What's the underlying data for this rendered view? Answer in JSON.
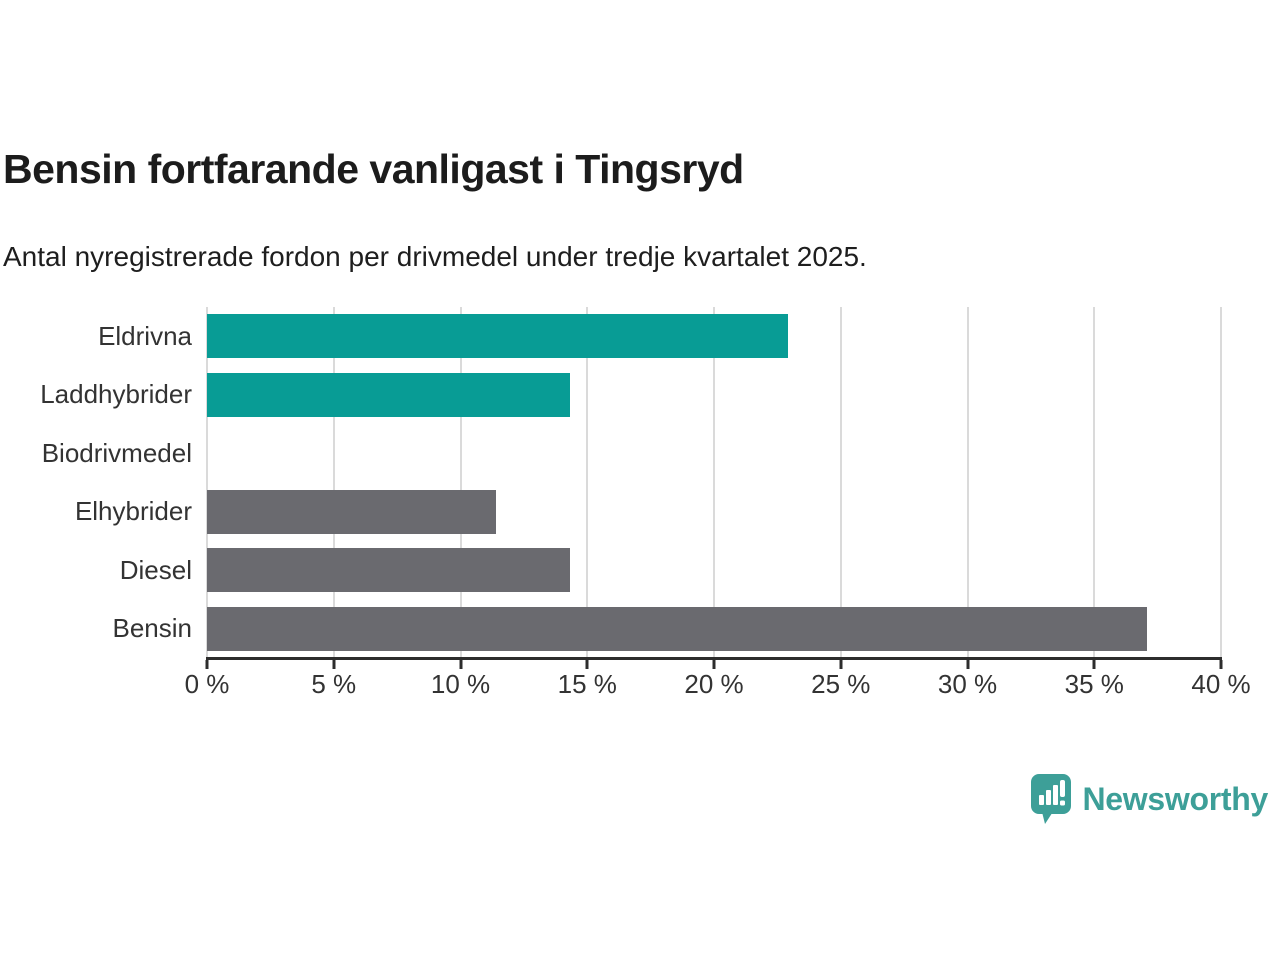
{
  "title": "Bensin fortfarande vanligast i Tingsryd",
  "subtitle": "Antal nyregistrerade fordon per drivmedel under tredje kvartalet 2025.",
  "chart_data": {
    "type": "bar",
    "orientation": "horizontal",
    "categories": [
      "Eldrivna",
      "Laddhybrider",
      "Biodrivmedel",
      "Elhybrider",
      "Diesel",
      "Bensin"
    ],
    "values": [
      22.9,
      14.3,
      0,
      11.4,
      14.3,
      37.1
    ],
    "unit": "%",
    "xlim": [
      0,
      40
    ],
    "x_tick_step": 5,
    "x_tick_labels": [
      "0 %",
      "5 %",
      "10 %",
      "15 %",
      "20 %",
      "25 %",
      "30 %",
      "35 %",
      "40 %"
    ],
    "grid": true,
    "legend": "none",
    "bar_colors": [
      "#089c95",
      "#089c95",
      "#089c95",
      "#6a6a6f",
      "#6a6a6f",
      "#6a6a6f"
    ],
    "title": "Bensin fortfarande vanligast i Tingsryd",
    "xlabel": "",
    "ylabel": ""
  },
  "colors": {
    "teal": "#089c95",
    "gray": "#6a6a6f",
    "gridline": "#dadada",
    "axis": "#2d2d2d",
    "logo_teal": "#3d9f98"
  },
  "branding": {
    "name": "Newsworthy",
    "icon": "newsworthy-bar-chart-bubble-icon"
  }
}
